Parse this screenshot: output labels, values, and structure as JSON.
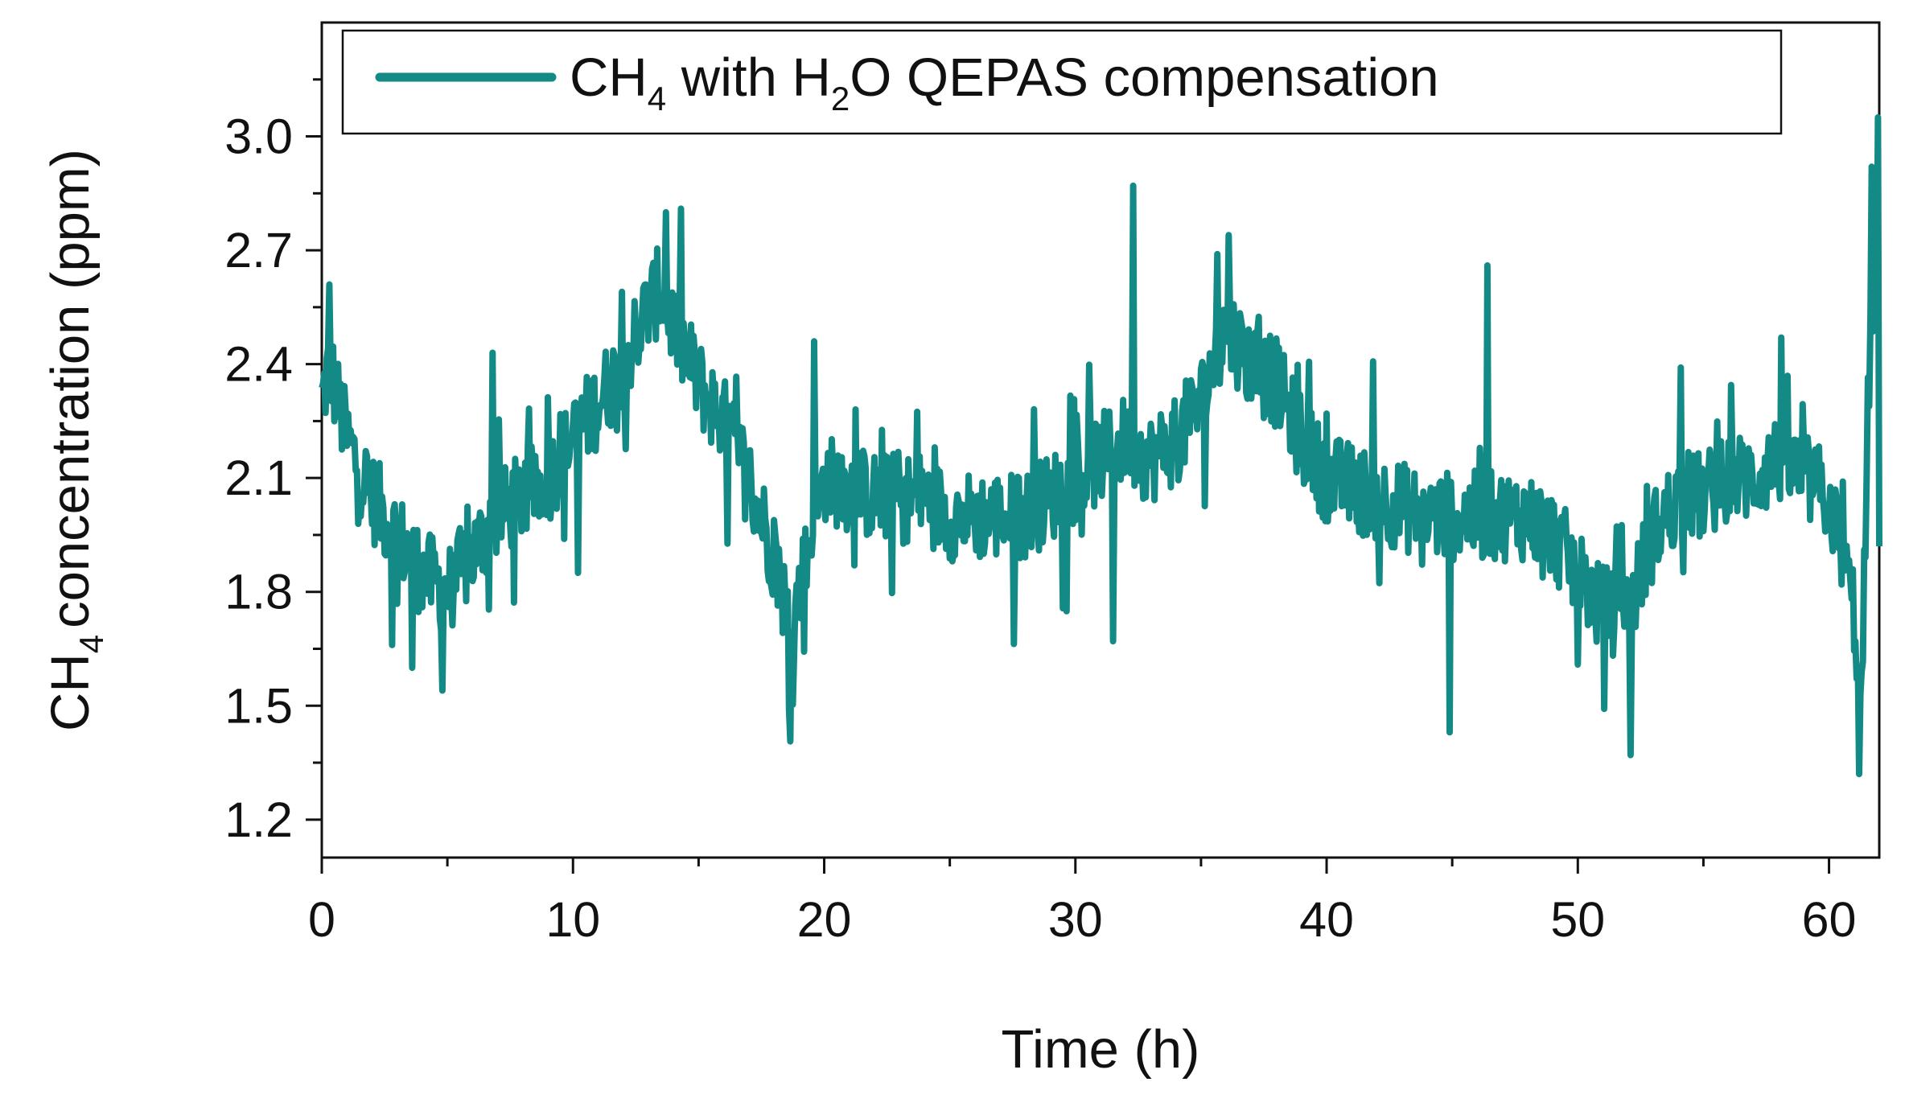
{
  "chart_data": {
    "type": "line",
    "title": "",
    "xlabel": "Time (h)",
    "ylabel": {
      "main": "CH",
      "sub": "4",
      "rest": "concentration (ppm)"
    },
    "xlim": [
      0,
      62
    ],
    "ylim": [
      1.1,
      3.3
    ],
    "xticks": [
      0,
      10,
      20,
      30,
      40,
      50,
      60
    ],
    "yticks": [
      1.2,
      1.5,
      1.8,
      2.1,
      2.4,
      2.7,
      3.0
    ],
    "xtick_labels": [
      "0",
      "10",
      "20",
      "30",
      "40",
      "50",
      "60"
    ],
    "ytick_labels": [
      "1.2",
      "1.5",
      "1.8",
      "2.1",
      "2.4",
      "2.7",
      "3.0"
    ],
    "grid": false,
    "legend_position": "top-left",
    "series": [
      {
        "name": "CH4 with H2O QEPAS compensation",
        "legend_parts": {
          "a": "CH",
          "a_sub": "4",
          "b": " with H",
          "b_sub": "2",
          "c": "O QEPAS compensation"
        },
        "color": "#138a86",
        "trend": [
          [
            0,
            2.3
          ],
          [
            0.3,
            2.4
          ],
          [
            1,
            2.2
          ],
          [
            2,
            2.05
          ],
          [
            3,
            1.95
          ],
          [
            4,
            1.85
          ],
          [
            5,
            1.8
          ],
          [
            6,
            1.9
          ],
          [
            7,
            2.0
          ],
          [
            8,
            2.05
          ],
          [
            9,
            2.1
          ],
          [
            10,
            2.2
          ],
          [
            11,
            2.3
          ],
          [
            12,
            2.4
          ],
          [
            13,
            2.55
          ],
          [
            13.5,
            2.6
          ],
          [
            14,
            2.5
          ],
          [
            15,
            2.35
          ],
          [
            16,
            2.25
          ],
          [
            17,
            2.1
          ],
          [
            18,
            1.9
          ],
          [
            18.7,
            1.7
          ],
          [
            19.5,
            1.95
          ],
          [
            20,
            2.1
          ],
          [
            22,
            2.05
          ],
          [
            24,
            2.05
          ],
          [
            25,
            2.0
          ],
          [
            26,
            2.0
          ],
          [
            28,
            2.0
          ],
          [
            29,
            2.05
          ],
          [
            30,
            2.1
          ],
          [
            31,
            2.15
          ],
          [
            32,
            2.2
          ],
          [
            33,
            2.15
          ],
          [
            34,
            2.2
          ],
          [
            35,
            2.3
          ],
          [
            36,
            2.5
          ],
          [
            37,
            2.4
          ],
          [
            38,
            2.35
          ],
          [
            39,
            2.2
          ],
          [
            40,
            2.1
          ],
          [
            42,
            2.05
          ],
          [
            44,
            2.0
          ],
          [
            45,
            2.0
          ],
          [
            46,
            2.0
          ],
          [
            47,
            2.0
          ],
          [
            48,
            2.0
          ],
          [
            49,
            1.95
          ],
          [
            50,
            1.85
          ],
          [
            51,
            1.75
          ],
          [
            52,
            1.75
          ],
          [
            53,
            1.95
          ],
          [
            54,
            2.05
          ],
          [
            55,
            2.05
          ],
          [
            56,
            2.1
          ],
          [
            57,
            2.1
          ],
          [
            58,
            2.15
          ],
          [
            59,
            2.1
          ],
          [
            60,
            2.05
          ],
          [
            61,
            1.75
          ],
          [
            61.3,
            1.5
          ],
          [
            61.6,
            2.4
          ],
          [
            62,
            2.8
          ]
        ],
        "spikes": [
          [
            0.3,
            2.61
          ],
          [
            2.8,
            1.66
          ],
          [
            3.6,
            1.6
          ],
          [
            4.8,
            1.54
          ],
          [
            6.8,
            2.43
          ],
          [
            10.2,
            1.85
          ],
          [
            13.7,
            2.8
          ],
          [
            18.6,
            1.49
          ],
          [
            19.6,
            2.46
          ],
          [
            32.3,
            2.87
          ],
          [
            31.5,
            1.67
          ],
          [
            36.1,
            2.74
          ],
          [
            44.9,
            1.43
          ],
          [
            46.4,
            2.66
          ],
          [
            52.1,
            1.37
          ],
          [
            58.1,
            2.47
          ],
          [
            61.2,
            1.32
          ],
          [
            61.7,
            2.92
          ],
          [
            61.95,
            3.05
          ],
          [
            62.0,
            1.92
          ]
        ],
        "noise": 0.12,
        "n_points": 1240
      }
    ]
  }
}
